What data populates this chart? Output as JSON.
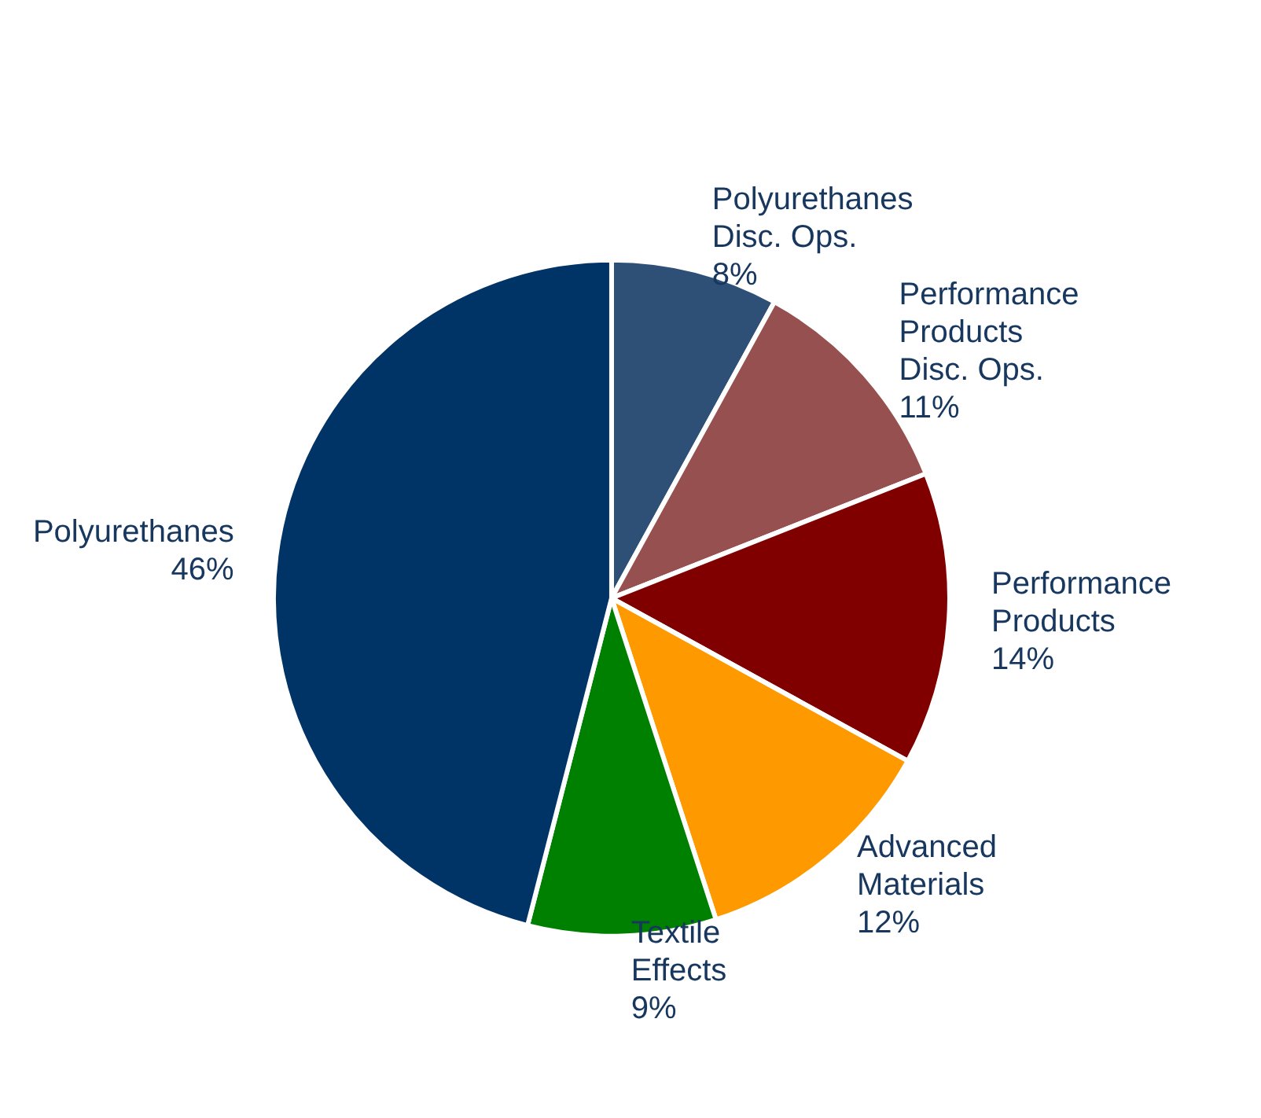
{
  "chart_data": {
    "type": "pie",
    "categories": [
      "Polyurethanes\nDisc. Ops.",
      "Performance\nProducts\nDisc. Ops.",
      "Performance\nProducts",
      "Advanced\nMaterials",
      "Textile\nEffects",
      "Polyurethanes"
    ],
    "values": [
      8,
      11,
      14,
      12,
      9,
      46
    ],
    "value_labels": [
      "8%",
      "11%",
      "14%",
      "12%",
      "9%",
      "46%"
    ],
    "colors": [
      "#2e5077",
      "#95504f",
      "#800000",
      "#ff9900",
      "#008000",
      "#003366"
    ],
    "legend": false
  }
}
